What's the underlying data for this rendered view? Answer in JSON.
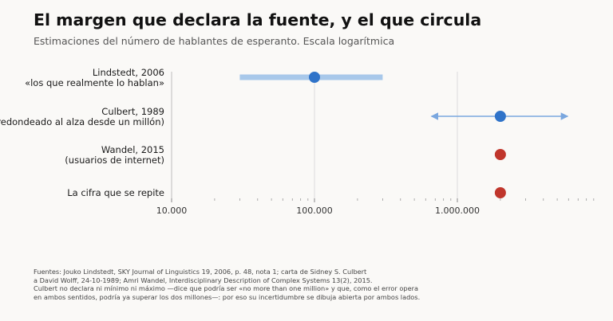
{
  "title": "El margen que declara la fuente, y el que circula",
  "subtitle": "Estimaciones del número de hablantes de esperanto. Escala logarítmica",
  "chart_data": {
    "type": "dot-range",
    "scale": "log",
    "xlim": [
      10000,
      10000000
    ],
    "xticks": [
      10000,
      100000,
      1000000
    ],
    "xtick_labels": [
      "10.000",
      "100.000",
      "1.000.000"
    ],
    "grid": "vertical at major ticks",
    "rows": [
      {
        "label_line1": "Lindstedt, 2006",
        "label_line2": "«los que realmente lo hablan»",
        "value": 100000,
        "range": [
          30000,
          300000
        ],
        "range_style": "band",
        "color": "#2f73c9",
        "range_color": "#a8c8ea"
      },
      {
        "label_line1": "Culbert, 1989",
        "label_line2": "(redondeado al alza desde un millón)",
        "value": 2000000,
        "range": [
          650000,
          6000000
        ],
        "range_style": "open-arrows",
        "color": "#2f73c9",
        "range_color": "#7aa7df"
      },
      {
        "label_line1": "Wandel, 2015",
        "label_line2": "(usuarios de internet)",
        "value": 2000000,
        "range": null,
        "color": "#c0362c"
      },
      {
        "label_line1": "La cifra que se repite",
        "label_line2": "",
        "value": 2000000,
        "range": null,
        "color": "#c0362c"
      }
    ]
  },
  "source_lines": [
    "Fuentes: Jouko Lindstedt, SKY Journal of Linguistics 19, 2006, p. 48, nota 1; carta de Sidney S. Culbert",
    "a David Wolff, 24-10-1989; Amri Wandel, Interdisciplinary Description of Complex Systems 13(2), 2015.",
    "Culbert no declara ni mínimo ni máximo —dice que podría ser «no more than one million» y que, como el error opera",
    "en ambos sentidos, podría ya superar los dos millones—: por eso su incertidumbre se dibuja abierta por ambos lados."
  ]
}
